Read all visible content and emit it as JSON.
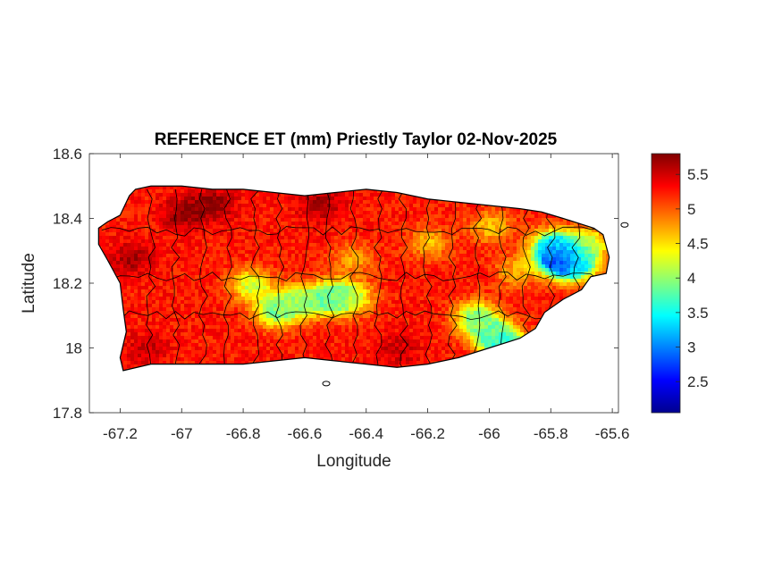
{
  "chart_data": {
    "type": "heatmap",
    "title": "REFERENCE ET (mm) Priestly Taylor 02-Nov-2025",
    "xlabel": "Longitude",
    "ylabel": "Latitude",
    "xlim": [
      -67.3,
      -65.58
    ],
    "ylim": [
      17.8,
      18.6
    ],
    "xticks": [
      -67.2,
      -67,
      -66.8,
      -66.6,
      -66.4,
      -66.2,
      -66,
      -65.8,
      -65.6
    ],
    "yticks": [
      17.8,
      18,
      18.2,
      18.4,
      18.6
    ],
    "colorbar": {
      "colormap": "jet",
      "range": [
        2.05,
        5.8
      ],
      "ticks": [
        2.5,
        3,
        3.5,
        4,
        4.5,
        5,
        5.5
      ]
    },
    "grid": false,
    "boundary_color": "#000000",
    "island_outline": [
      [
        -67.27,
        18.37
      ],
      [
        -67.24,
        18.39
      ],
      [
        -67.2,
        18.41
      ],
      [
        -67.17,
        18.47
      ],
      [
        -67.15,
        18.49
      ],
      [
        -67.1,
        18.5
      ],
      [
        -67.0,
        18.5
      ],
      [
        -66.9,
        18.49
      ],
      [
        -66.8,
        18.49
      ],
      [
        -66.7,
        18.48
      ],
      [
        -66.6,
        18.47
      ],
      [
        -66.5,
        18.48
      ],
      [
        -66.4,
        18.49
      ],
      [
        -66.3,
        18.48
      ],
      [
        -66.2,
        18.46
      ],
      [
        -66.1,
        18.45
      ],
      [
        -66.0,
        18.44
      ],
      [
        -65.9,
        18.43
      ],
      [
        -65.83,
        18.42
      ],
      [
        -65.76,
        18.4
      ],
      [
        -65.66,
        18.37
      ],
      [
        -65.63,
        18.35
      ],
      [
        -65.61,
        18.28
      ],
      [
        -65.62,
        18.23
      ],
      [
        -65.67,
        18.22
      ],
      [
        -65.7,
        18.18
      ],
      [
        -65.76,
        18.15
      ],
      [
        -65.82,
        18.11
      ],
      [
        -65.85,
        18.06
      ],
      [
        -65.9,
        18.03
      ],
      [
        -66.0,
        18.0
      ],
      [
        -66.1,
        17.97
      ],
      [
        -66.2,
        17.95
      ],
      [
        -66.3,
        17.94
      ],
      [
        -66.4,
        17.95
      ],
      [
        -66.5,
        17.96
      ],
      [
        -66.6,
        17.97
      ],
      [
        -66.7,
        17.96
      ],
      [
        -66.8,
        17.95
      ],
      [
        -66.9,
        17.95
      ],
      [
        -67.0,
        17.95
      ],
      [
        -67.1,
        17.95
      ],
      [
        -67.19,
        17.93
      ],
      [
        -67.2,
        17.97
      ],
      [
        -67.18,
        18.05
      ],
      [
        -67.19,
        18.12
      ],
      [
        -67.2,
        18.2
      ],
      [
        -67.24,
        18.27
      ],
      [
        -67.27,
        18.32
      ]
    ],
    "et_field": {
      "base_value": 5.25,
      "anomalies": [
        {
          "lon": -67.0,
          "lat": 18.42,
          "value": 5.75
        },
        {
          "lon": -66.9,
          "lat": 18.45,
          "value": 5.75
        },
        {
          "lon": -66.55,
          "lat": 18.45,
          "value": 5.7
        },
        {
          "lon": -67.17,
          "lat": 18.28,
          "value": 5.65
        },
        {
          "lon": -67.12,
          "lat": 18.0,
          "value": 5.55
        },
        {
          "lon": -66.3,
          "lat": 18.0,
          "value": 5.55
        },
        {
          "lon": -66.45,
          "lat": 18.28,
          "value": 4.75
        },
        {
          "lon": -66.2,
          "lat": 18.33,
          "value": 4.65
        },
        {
          "lon": -66.0,
          "lat": 18.38,
          "value": 4.6
        },
        {
          "lon": -65.92,
          "lat": 18.24,
          "value": 4.7
        },
        {
          "lon": -66.78,
          "lat": 18.2,
          "value": 4.2
        },
        {
          "lon": -66.7,
          "lat": 18.12,
          "value": 3.9
        },
        {
          "lon": -66.62,
          "lat": 18.15,
          "value": 4.1
        },
        {
          "lon": -66.52,
          "lat": 18.16,
          "value": 3.7
        },
        {
          "lon": -66.45,
          "lat": 18.16,
          "value": 4.3
        },
        {
          "lon": -66.05,
          "lat": 18.1,
          "value": 4.0
        },
        {
          "lon": -66.0,
          "lat": 18.05,
          "value": 3.9
        },
        {
          "lon": -65.95,
          "lat": 18.01,
          "value": 3.5
        },
        {
          "lon": -65.8,
          "lat": 18.32,
          "value": 3.6
        },
        {
          "lon": -65.77,
          "lat": 18.28,
          "value": 2.1
        },
        {
          "lon": -65.72,
          "lat": 18.26,
          "value": 3.8
        },
        {
          "lon": -65.68,
          "lat": 18.33,
          "value": 4.3
        }
      ]
    },
    "small_islands": [
      {
        "lon": -66.53,
        "lat": 17.89
      },
      {
        "lon": -65.56,
        "lat": 18.38
      }
    ]
  }
}
